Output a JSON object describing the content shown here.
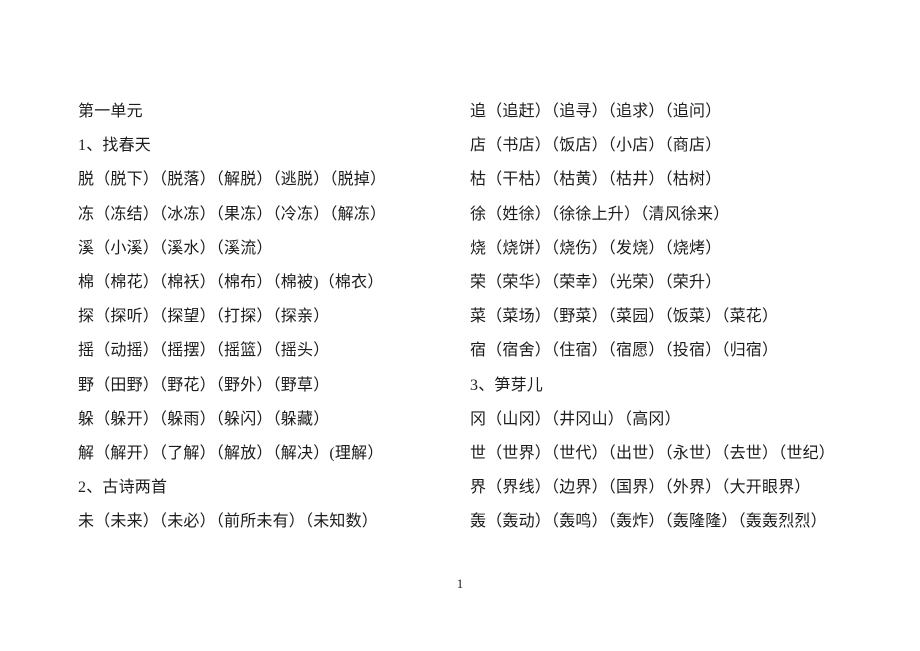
{
  "document": {
    "background_color": "#ffffff",
    "text_color": "#1c1c1c",
    "page_number": "1",
    "left_column": [
      "第一单元",
      "1、找春天",
      "脱（脱下）（脱落）（解脱）（逃脱）（脱掉）",
      "冻（冻结）（冰冻）（果冻）（冷冻）（解冻）",
      "溪（小溪）（溪水）（溪流）",
      "棉（棉花）（棉袄）（棉布）（棉被)（棉衣）",
      "探（探听）（探望）（打探）（探亲）",
      "摇（动摇）（摇摆）（摇篮）（摇头）",
      "野（田野）（野花）（野外）（野草）",
      "躲（躲开）（躲雨）（躲闪）（躲藏）",
      "解（解开）（了解）（解放）（解决）(理解）",
      "2、古诗两首",
      "未（未来）（未必）（前所未有）（未知数）"
    ],
    "right_column": [
      "追（追赶）（追寻）（追求）（追问）",
      "店（书店）（饭店）（小店）（商店）",
      "枯（干枯）（枯黄）（枯井）（枯树）",
      "徐（姓徐）（徐徐上升）（清风徐来）",
      "烧（烧饼）（烧伤）（发烧）（烧烤）",
      "荣（荣华）（荣幸）（光荣）（荣升）",
      "菜（菜场）（野菜）（菜园）（饭菜）（菜花）",
      "宿（宿舍）（住宿）（宿愿）（投宿）（归宿）",
      "3、笋芽儿",
      "冈（山冈）（井冈山）（高冈）",
      "世（世界）（世代）（出世）（永世）（去世）（世纪）",
      "界（界线）（边界）（国界）（外界）（大开眼界）",
      "轰（轰动）（轰鸣）（轰炸）（轰隆隆）（轰轰烈烈）"
    ]
  }
}
